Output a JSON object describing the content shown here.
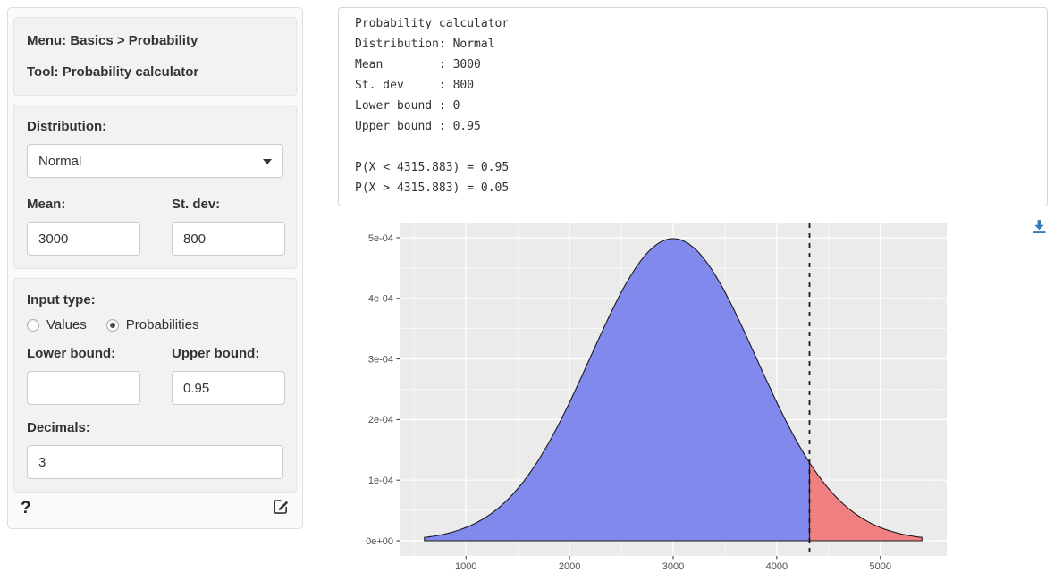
{
  "sidebar": {
    "info": {
      "menu_label": "Menu: Basics > Probability",
      "tool_label": "Tool: Probability calculator"
    },
    "distribution": {
      "label": "Distribution:",
      "selected": "Normal"
    },
    "mean": {
      "label": "Mean:",
      "value": "3000"
    },
    "stdev": {
      "label": "St. dev:",
      "value": "800"
    },
    "input_type": {
      "label": "Input type:",
      "options": [
        {
          "label": "Values",
          "selected": false
        },
        {
          "label": "Probabilities",
          "selected": true
        }
      ]
    },
    "lower_bound": {
      "label": "Lower bound:",
      "value": ""
    },
    "upper_bound": {
      "label": "Upper bound:",
      "value": "0.95"
    },
    "decimals": {
      "label": "Decimals:",
      "value": "3"
    },
    "help_label": "?"
  },
  "output": {
    "lines": [
      "Probability calculator",
      "Distribution: Normal",
      "Mean        : 3000",
      "St. dev     : 800",
      "Lower bound : 0",
      "Upper bound : 0.95",
      "",
      "P(X < 4315.883) = 0.95",
      "P(X > 4315.883) = 0.05"
    ]
  },
  "chart_data": {
    "type": "area",
    "title": "",
    "distribution": "normal",
    "mean": 3000,
    "stdev": 800,
    "x_range": [
      600,
      5400
    ],
    "threshold": 4315.883,
    "region_below": {
      "probability": 0.95,
      "color": "#8289ec"
    },
    "region_above": {
      "probability": 0.05,
      "color": "#f08080"
    },
    "vline": {
      "x": 4315.883,
      "style": "dashed",
      "color": "#1a1a1a"
    },
    "x_ticks": [
      1000,
      2000,
      3000,
      4000,
      5000
    ],
    "x_minor_ticks": [
      500,
      1500,
      2500,
      3500,
      4500,
      5500
    ],
    "y_ticks": [
      {
        "value": 0.0,
        "label": "0e+00"
      },
      {
        "value": 0.0001,
        "label": "1e-04"
      },
      {
        "value": 0.0002,
        "label": "2e-04"
      },
      {
        "value": 0.0003,
        "label": "3e-04"
      },
      {
        "value": 0.0004,
        "label": "4e-04"
      },
      {
        "value": 0.0005,
        "label": "5e-04"
      }
    ],
    "y_minor_ticks": [
      5e-05,
      0.00015,
      0.00025,
      0.00035,
      0.00045
    ],
    "ylim": [
      0,
      0.0005
    ],
    "grid": true,
    "legend": "none",
    "panel_bg": "#EBEBEB",
    "grid_color": "#FFFFFF",
    "curve_color": "#1a1a1a",
    "tick_color": "#4d4d4d",
    "peak_density": 0.0004987
  },
  "icons": {
    "download_color": "#337ab7"
  }
}
